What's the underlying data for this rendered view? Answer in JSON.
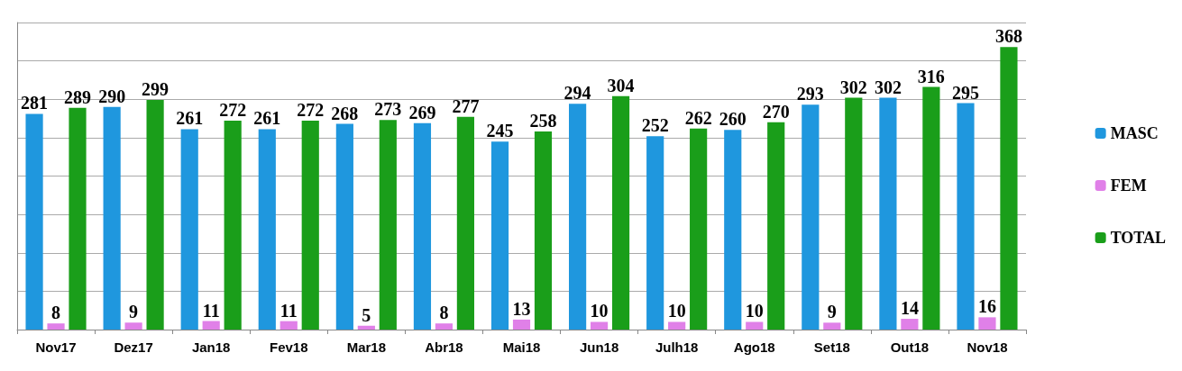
{
  "chart_data": {
    "type": "bar",
    "categories": [
      "Nov17",
      "Dez17",
      "Jan18",
      "Fev18",
      "Mar18",
      "Abr18",
      "Mai18",
      "Jun18",
      "Julh18",
      "Ago18",
      "Set18",
      "Out18",
      "Nov18"
    ],
    "series": [
      {
        "name": "MASC",
        "color": "#1f97de",
        "values": [
          281,
          290,
          261,
          261,
          268,
          269,
          245,
          294,
          252,
          260,
          293,
          302,
          295
        ]
      },
      {
        "name": "FEM",
        "color": "#e080e8",
        "values": [
          8,
          9,
          11,
          11,
          5,
          8,
          13,
          10,
          10,
          10,
          9,
          14,
          16
        ]
      },
      {
        "name": "TOTAL",
        "color": "#1a9e1a",
        "values": [
          289,
          299,
          272,
          272,
          273,
          277,
          258,
          304,
          262,
          270,
          302,
          316,
          368
        ]
      }
    ],
    "ylim": [
      0,
      400
    ],
    "yticks": [
      {
        "value": 0,
        "label": null
      },
      {
        "value": 50,
        "label": null
      },
      {
        "value": 100,
        "label": null
      },
      {
        "value": 150,
        "label": null
      },
      {
        "value": 200,
        "label": null
      },
      {
        "value": 250,
        "label": null
      },
      {
        "value": 300,
        "label": null
      },
      {
        "value": 350,
        "label": null
      },
      {
        "value": 400,
        "label": null
      }
    ],
    "grid": "y",
    "legend": "right",
    "data_labels": true
  }
}
